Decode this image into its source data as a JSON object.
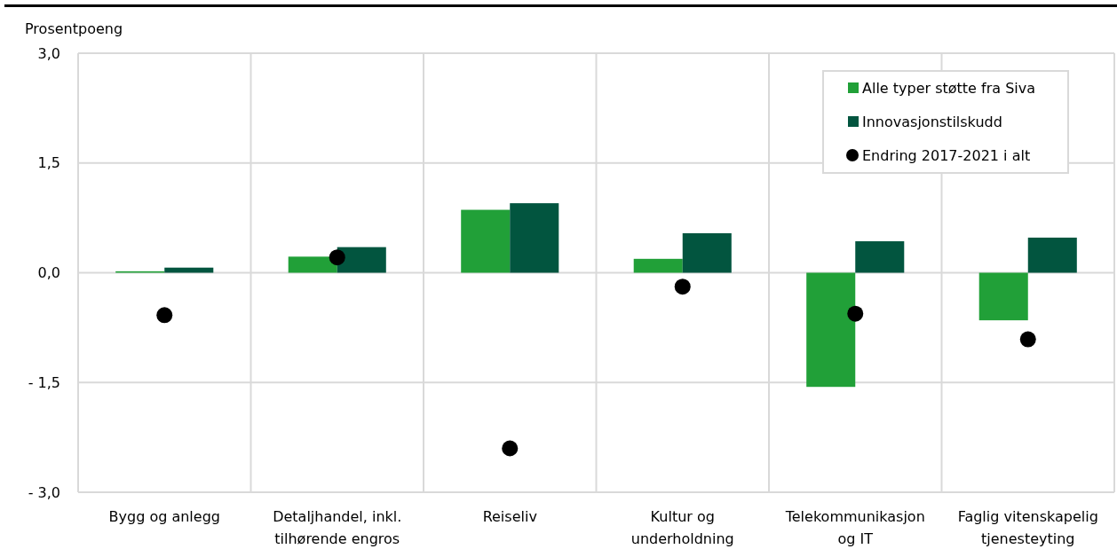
{
  "chart_data": {
    "type": "bar",
    "ylabel": "Prosentpoeng",
    "categories": [
      "Bygg og anlegg",
      "Detaljhandel, inkl. tilhørende engros",
      "Reiseliv",
      "Kultur og underholdning",
      "Telekommunikasjon og IT",
      "Faglig vitenskapelig tjenesteyting"
    ],
    "series": [
      {
        "name": "Alle typer støtte fra Siva",
        "color": "#21a038",
        "values": [
          0.02,
          0.22,
          0.86,
          0.19,
          -1.56,
          -0.65
        ]
      },
      {
        "name": "Innovasjonstilskudd",
        "color": "#02553f",
        "values": [
          0.07,
          0.35,
          0.95,
          0.54,
          0.43,
          0.48
        ]
      },
      {
        "name": "Endring 2017-2021 i alt",
        "type": "scatter",
        "marker": "circle",
        "color": "#000000",
        "x": [
          "Bygg og anlegg",
          "Detaljhandel, inkl. tilhørende engros",
          "Reiseliv",
          "Kultur og underholdning",
          "Telekommunikasjon og IT",
          "Faglig vitenskapelig tjenesteyting"
        ],
        "values": [
          -0.58,
          0.21,
          -2.4,
          -0.19,
          -0.56,
          -0.91
        ]
      }
    ],
    "ylim": [
      -3,
      3
    ],
    "yticks": [
      {
        "value": 3,
        "label": "3,0"
      },
      {
        "value": 1.5,
        "label": "1,5"
      },
      {
        "value": 0,
        "label": "0,0"
      },
      {
        "value": -1.5,
        "label": "- 1,5"
      },
      {
        "value": -3,
        "label": "- 3,0"
      }
    ],
    "grid": true,
    "legend": "top right"
  }
}
